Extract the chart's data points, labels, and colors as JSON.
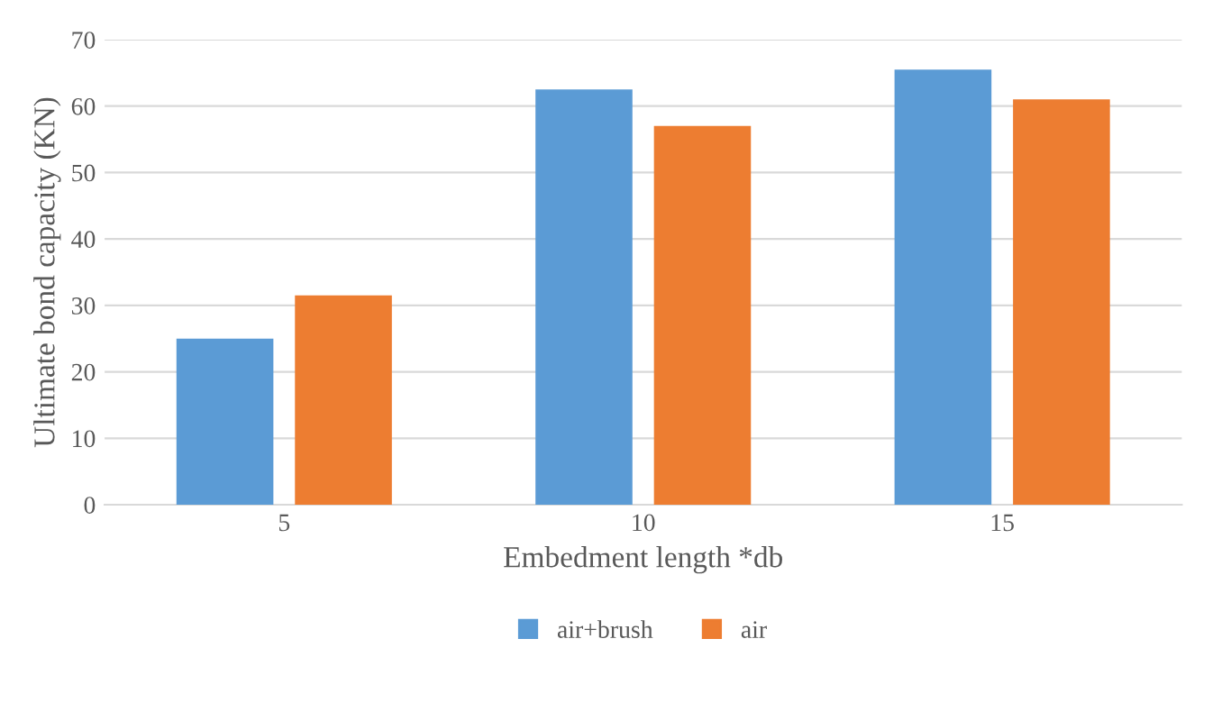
{
  "chart_data": {
    "type": "bar",
    "xlabel": "Embedment length *db",
    "ylabel": "Ultimate bond capacity (KN)",
    "categories": [
      "5",
      "10",
      "15"
    ],
    "series": [
      {
        "name": "air+brush",
        "color": "#5b9bd5",
        "values": [
          25,
          62.5,
          65.5
        ]
      },
      {
        "name": "air",
        "color": "#ed7d31",
        "values": [
          31.5,
          57,
          61
        ]
      }
    ],
    "ylim": [
      0,
      70
    ],
    "yticks": [
      0,
      10,
      20,
      30,
      40,
      50,
      60,
      70
    ],
    "grid": "y",
    "legend": "bottom"
  }
}
